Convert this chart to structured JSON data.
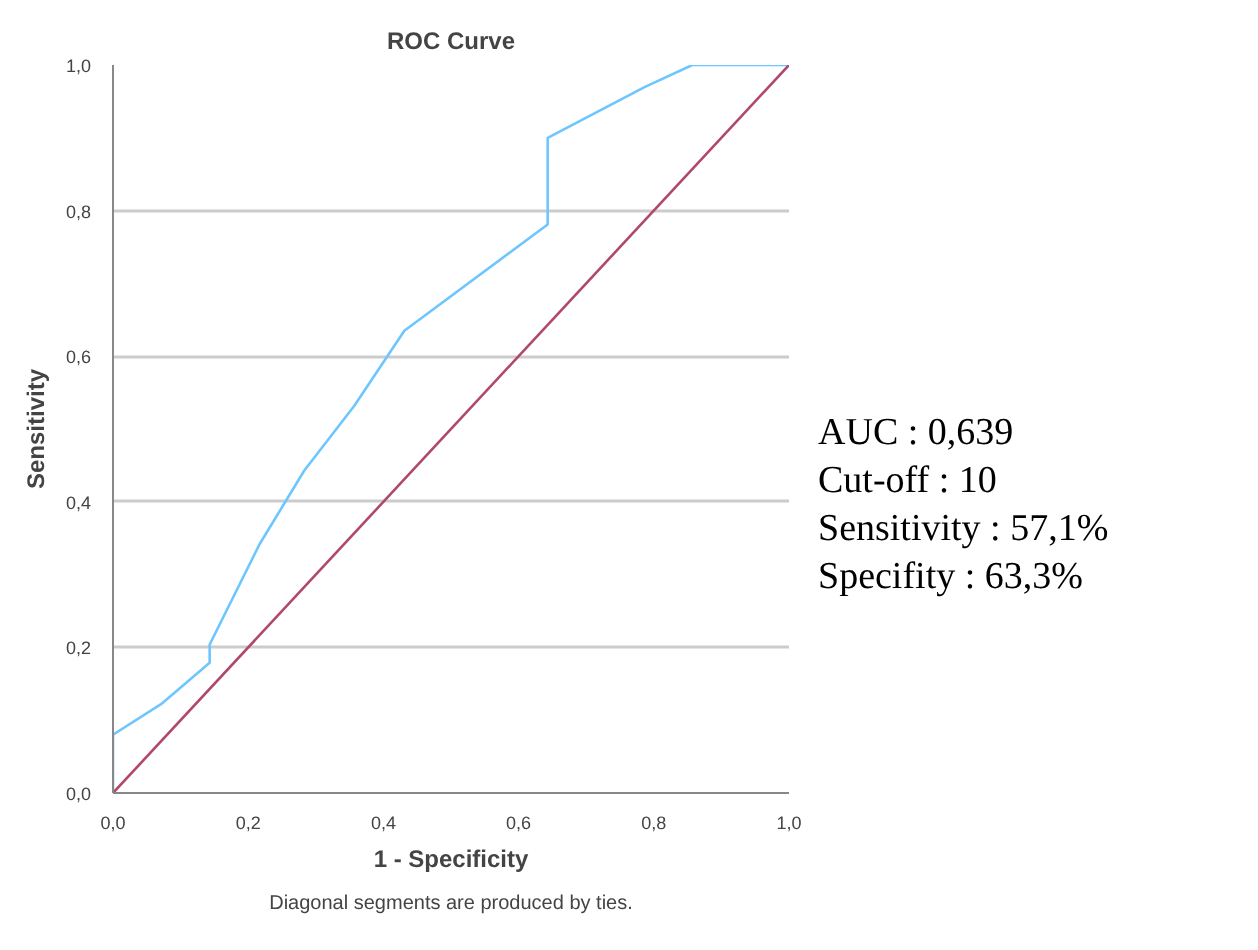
{
  "chart_data": {
    "type": "line",
    "title": "ROC Curve",
    "xlabel": "1 - Specificity",
    "ylabel": "Sensitivity",
    "xlim": [
      0,
      1
    ],
    "ylim": [
      0,
      1
    ],
    "xticks": [
      {
        "value": 0,
        "label": "0,0"
      },
      {
        "value": 0.2,
        "label": "0,2"
      },
      {
        "value": 0.4,
        "label": "0,4"
      },
      {
        "value": 0.6,
        "label": "0,6"
      },
      {
        "value": 0.8,
        "label": "0,8"
      },
      {
        "value": 1,
        "label": "1,0"
      }
    ],
    "yticks": [
      {
        "value": 0,
        "label": "0,0"
      },
      {
        "value": 0.2,
        "label": "0,2"
      },
      {
        "value": 0.4,
        "label": "0,4"
      },
      {
        "value": 0.6,
        "label": "0,6"
      },
      {
        "value": 0.8,
        "label": "0,8"
      },
      {
        "value": 1,
        "label": "1,0"
      }
    ],
    "grid": "y",
    "series": [
      {
        "color": "#6ec6ff",
        "x": [
          0,
          0,
          0.071,
          0.143,
          0.143,
          0.217,
          0.283,
          0.357,
          0.431,
          0.643,
          0.643,
          0.787,
          0.857,
          1
        ],
        "values": [
          0,
          0.08,
          0.122,
          0.179,
          0.204,
          0.342,
          0.443,
          0.532,
          0.635,
          0.781,
          0.9,
          0.97,
          1,
          1
        ]
      },
      {
        "color": "#b0486e",
        "x": [
          0,
          1
        ],
        "values": [
          0,
          1
        ]
      }
    ],
    "annotations": [
      "AUC : 0,639",
      "Cut-off : 10",
      "Sensitivity : 57,1%",
      "Specifity : 63,3%",
      "Diagonal segments are produced by ties."
    ]
  }
}
